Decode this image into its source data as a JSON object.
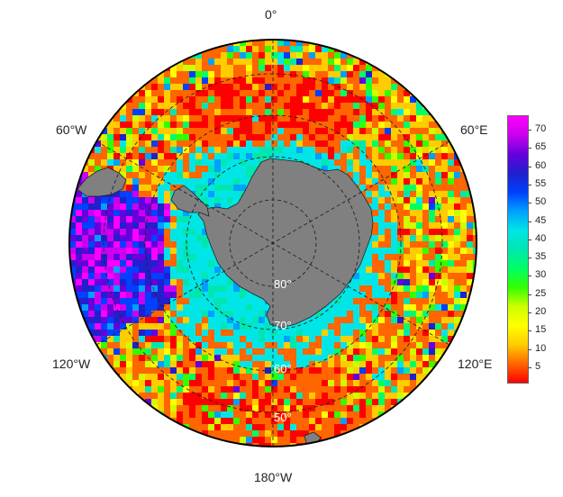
{
  "map": {
    "projection": "south-polar-stereographic",
    "center_lon_top": "0°",
    "lon_labels": {
      "top": "0°",
      "left_upper": "60°W",
      "right_upper": "60°E",
      "left_lower": "120°W",
      "right_lower": "120°E",
      "bottom": "180°W"
    },
    "lat_labels": [
      "80°",
      "70°",
      "60°",
      "50°"
    ],
    "land_color": "#808080",
    "background_color": "#ffffff"
  },
  "colorbar": {
    "ticks": [
      "70",
      "65",
      "60",
      "55",
      "50",
      "45",
      "40",
      "35",
      "30",
      "25",
      "20",
      "15",
      "10",
      "5"
    ],
    "tick_values": [
      70,
      65,
      60,
      55,
      50,
      45,
      40,
      35,
      30,
      25,
      20,
      15,
      10,
      5
    ],
    "range": [
      1,
      74
    ],
    "colors": [
      "#ff0000",
      "#ff6600",
      "#ffcc00",
      "#ffff00",
      "#ccff00",
      "#33ff00",
      "#00ff66",
      "#00e6b0",
      "#00e6e6",
      "#00a0ff",
      "#0040ff",
      "#2020cc",
      "#6600dd",
      "#cc00ee",
      "#ff00ff"
    ]
  }
}
